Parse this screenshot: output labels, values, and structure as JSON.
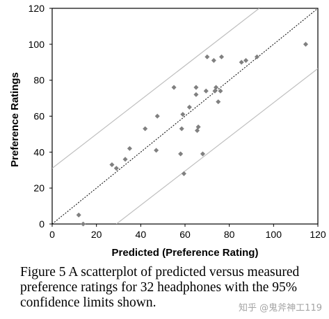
{
  "chart_data": {
    "type": "scatter",
    "xlabel": "Predicted (Preference Rating)",
    "ylabel": "Preference Ratings",
    "xlim": [
      0,
      120
    ],
    "ylim": [
      0,
      120
    ],
    "xticks": [
      "0",
      "20",
      "40",
      "60",
      "80",
      "100",
      "120"
    ],
    "yticks": [
      "0",
      "20",
      "40",
      "60",
      "80",
      "100",
      "120"
    ],
    "grid": false,
    "points": [
      {
        "x": 12,
        "y": 5
      },
      {
        "x": 14,
        "y": 0
      },
      {
        "x": 27,
        "y": 33
      },
      {
        "x": 29,
        "y": 31
      },
      {
        "x": 33,
        "y": 36
      },
      {
        "x": 35,
        "y": 42
      },
      {
        "x": 42,
        "y": 53
      },
      {
        "x": 47,
        "y": 41
      },
      {
        "x": 47.5,
        "y": 60
      },
      {
        "x": 55,
        "y": 76
      },
      {
        "x": 58,
        "y": 39
      },
      {
        "x": 58.5,
        "y": 53
      },
      {
        "x": 59,
        "y": 61
      },
      {
        "x": 59.5,
        "y": 28
      },
      {
        "x": 62,
        "y": 65
      },
      {
        "x": 65,
        "y": 72
      },
      {
        "x": 65,
        "y": 76
      },
      {
        "x": 65.5,
        "y": 52
      },
      {
        "x": 66,
        "y": 54
      },
      {
        "x": 68,
        "y": 39
      },
      {
        "x": 69.5,
        "y": 74
      },
      {
        "x": 70,
        "y": 93
      },
      {
        "x": 73,
        "y": 91
      },
      {
        "x": 73.5,
        "y": 74
      },
      {
        "x": 74,
        "y": 76
      },
      {
        "x": 75,
        "y": 68
      },
      {
        "x": 76,
        "y": 74
      },
      {
        "x": 76.5,
        "y": 93
      },
      {
        "x": 85.5,
        "y": 90
      },
      {
        "x": 87.5,
        "y": 91
      },
      {
        "x": 92.5,
        "y": 93
      },
      {
        "x": 114.5,
        "y": 100
      }
    ],
    "lines": [
      {
        "label": "identity",
        "style": "dotted",
        "color": "#000000",
        "from": [
          0,
          0
        ],
        "to": [
          120,
          120
        ]
      },
      {
        "label": "upper-95",
        "style": "solid",
        "color": "#bfbfbf",
        "from": [
          0,
          31
        ],
        "to": [
          93.5,
          120
        ]
      },
      {
        "label": "lower-95",
        "style": "solid",
        "color": "#bfbfbf",
        "from": [
          29,
          0
        ],
        "to": [
          120,
          86.5
        ]
      }
    ],
    "point_color": "#808080"
  },
  "caption": {
    "text": "Figure 5 A scatterplot of predicted versus measured preference ratings for 32 headphones with the 95% confidence limits shown."
  },
  "watermark": {
    "text": "知乎 @鬼斧神工119"
  }
}
